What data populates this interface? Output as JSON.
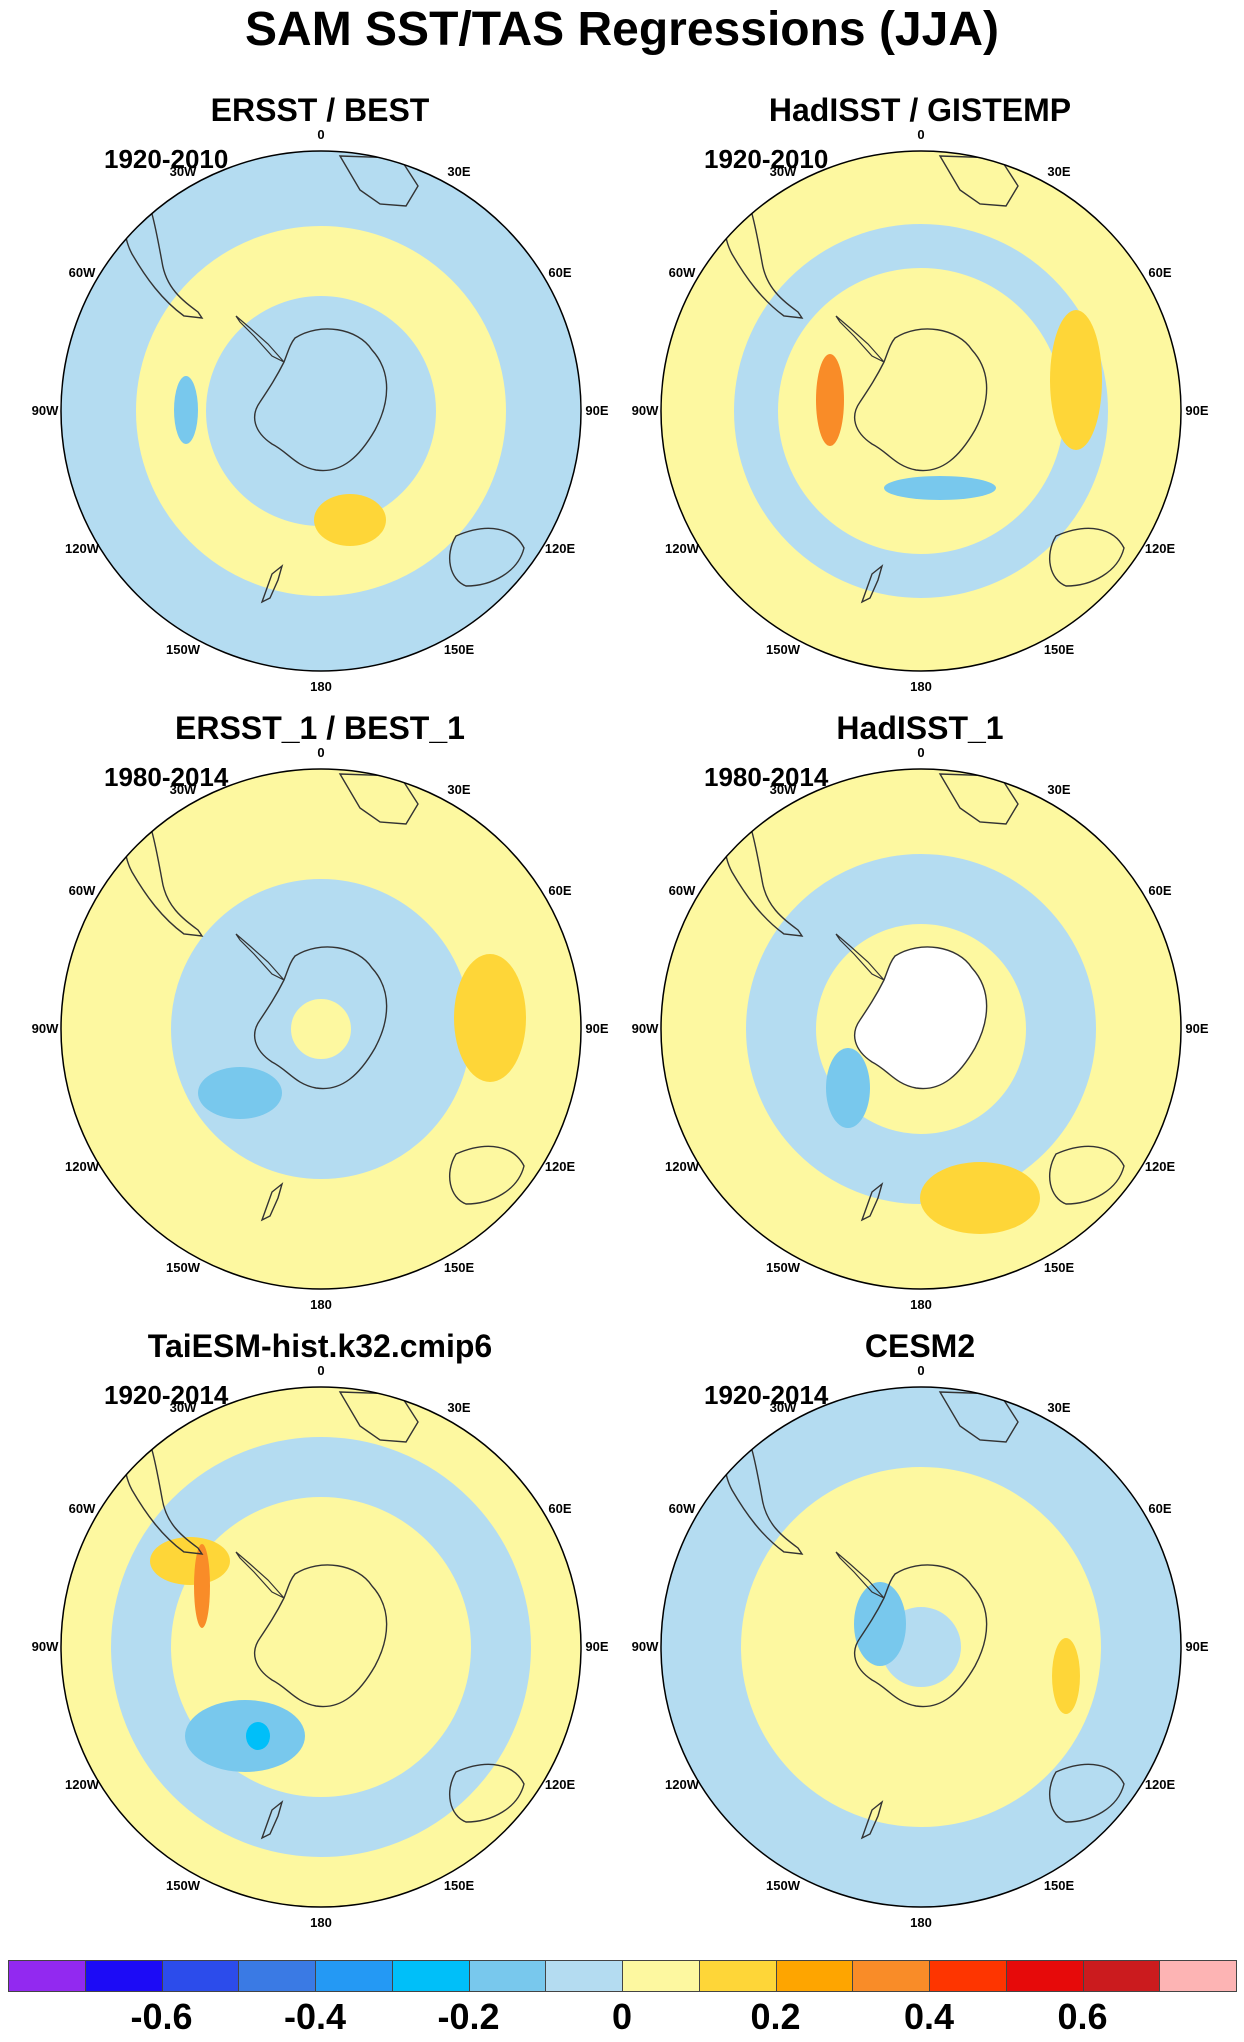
{
  "title": "SAM SST/TAS Regressions (JJA)",
  "panels": [
    {
      "title": "ERSST / BEST",
      "period": "1920-2010",
      "fill": "#b4dcf1",
      "mask_antarctica": false,
      "blobs": [
        {
          "shape": "ring",
          "color": "#fdf8a0"
        },
        {
          "shape": "spot",
          "color": "#fed638"
        },
        {
          "shape": "spot",
          "color": "#78c8ed"
        }
      ]
    },
    {
      "title": "HadISST / GISTEMP",
      "period": "1920-2010",
      "fill": "#fdf8a0",
      "mask_antarctica": false,
      "blobs": [
        {
          "shape": "ring",
          "color": "#b4dcf1"
        },
        {
          "shape": "spot",
          "color": "#fed638"
        },
        {
          "shape": "spot",
          "color": "#f98c28"
        },
        {
          "shape": "spot",
          "color": "#78c8ed"
        }
      ]
    },
    {
      "title": "ERSST_1 / BEST_1",
      "period": "1980-2014",
      "fill": "#fdf8a0",
      "mask_antarctica": false,
      "blobs": [
        {
          "shape": "ring",
          "color": "#b4dcf1"
        },
        {
          "shape": "spot",
          "color": "#fed638"
        },
        {
          "shape": "spot",
          "color": "#78c8ed"
        }
      ]
    },
    {
      "title": "HadISST_1",
      "period": "1980-2014",
      "fill": "#fdf8a0",
      "mask_antarctica": true,
      "blobs": [
        {
          "shape": "ring",
          "color": "#b4dcf1"
        },
        {
          "shape": "spot",
          "color": "#fed638"
        },
        {
          "shape": "spot",
          "color": "#78c8ed"
        }
      ]
    },
    {
      "title": "TaiESM-hist.k32.cmip6",
      "period": "1920-2014",
      "fill": "#fdf8a0",
      "mask_antarctica": false,
      "blobs": [
        {
          "shape": "ring",
          "color": "#b4dcf1"
        },
        {
          "shape": "spot",
          "color": "#fed638"
        },
        {
          "shape": "spot",
          "color": "#f98c28"
        },
        {
          "shape": "spot",
          "color": "#78c8ed"
        },
        {
          "shape": "spot",
          "color": "#00bff9"
        }
      ]
    },
    {
      "title": "CESM2",
      "period": "1920-2014",
      "fill": "#b4dcf1",
      "mask_antarctica": false,
      "blobs": [
        {
          "shape": "ring",
          "color": "#fdf8a0"
        },
        {
          "shape": "spot",
          "color": "#fed638"
        },
        {
          "shape": "spot",
          "color": "#78c8ed"
        }
      ]
    }
  ],
  "meridian_labels": [
    "0",
    "30E",
    "60E",
    "90E",
    "120E",
    "150E",
    "180",
    "150W",
    "120W",
    "90W",
    "60W",
    "30W"
  ],
  "colorbar": {
    "colors": [
      "#9229f0",
      "#1c0bf6",
      "#2c4ceb",
      "#3a7ae4",
      "#2499f4",
      "#00bff9",
      "#78c8ed",
      "#b4dcf1",
      "#fdf8a0",
      "#fed638",
      "#fea500",
      "#f98c28",
      "#fe3500",
      "#e60a0a",
      "#cb1b1e",
      "#fdb4b4"
    ],
    "labels": [
      "-0.6",
      "-0.4",
      "-0.2",
      "0",
      "0.2",
      "0.4",
      "0.6"
    ],
    "label_values": [
      -0.6,
      -0.4,
      -0.2,
      0,
      0.2,
      0.4,
      0.6
    ],
    "min": -0.8,
    "step": 0.1
  }
}
